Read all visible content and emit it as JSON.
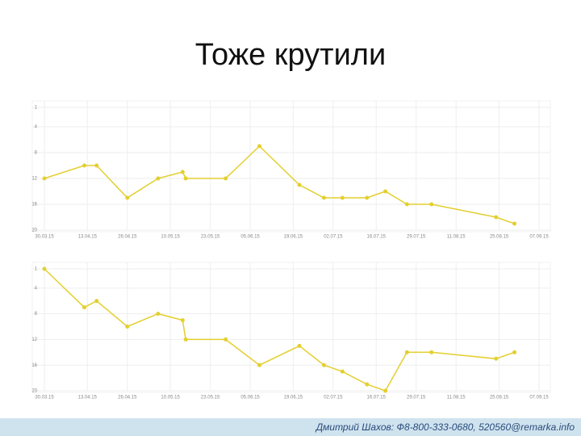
{
  "slide_title": "Тоже крутили",
  "footer": "Дмитрий Шахов: Ф8-800-333-0680, 520560@remarka.info",
  "chart_data": [
    {
      "type": "line",
      "inverted": true,
      "grid": true,
      "color": "#e3cf2f",
      "x": [
        "2015-03-30",
        "2015-04-12",
        "2015-04-16",
        "2015-04-26",
        "2015-05-06",
        "2015-05-14",
        "2015-05-15",
        "2015-05-28",
        "2015-06-08",
        "2015-06-21",
        "2015-06-29",
        "2015-07-05",
        "2015-07-13",
        "2015-07-19",
        "2015-07-26",
        "2015-08-03",
        "2015-08-24",
        "2015-08-30"
      ],
      "values": [
        12,
        10,
        10,
        15,
        12,
        11,
        12,
        12,
        7,
        13,
        15,
        15,
        15,
        14,
        16,
        16,
        18,
        19
      ],
      "xlim": [
        "2015-03-30",
        "2015-09-07"
      ],
      "xticks": [
        {
          "value": "2015-03-30",
          "label": "30.03.15"
        },
        {
          "value": "2015-04-13",
          "label": "13.04.15"
        },
        {
          "value": "2015-04-26",
          "label": "26.04.15"
        },
        {
          "value": "2015-05-10",
          "label": "10.05.15"
        },
        {
          "value": "2015-05-23",
          "label": "23.05.15"
        },
        {
          "value": "2015-06-05",
          "label": "05.06.15"
        },
        {
          "value": "2015-06-19",
          "label": "19.06.15"
        },
        {
          "value": "2015-07-02",
          "label": "02.07.15"
        },
        {
          "value": "2015-07-16",
          "label": "16.07.15"
        },
        {
          "value": "2015-07-29",
          "label": "29.07.15"
        },
        {
          "value": "2015-08-11",
          "label": "11.08.15"
        },
        {
          "value": "2015-08-25",
          "label": "25.08.15"
        },
        {
          "value": "2015-09-07",
          "label": "07.09.15"
        }
      ],
      "ylim": [
        1,
        20
      ],
      "yticks": [
        1,
        4,
        8,
        12,
        16,
        20
      ]
    },
    {
      "type": "line",
      "inverted": true,
      "grid": true,
      "color": "#e3cf2f",
      "x": [
        "2015-03-30",
        "2015-04-12",
        "2015-04-16",
        "2015-04-26",
        "2015-05-06",
        "2015-05-14",
        "2015-05-15",
        "2015-05-28",
        "2015-06-08",
        "2015-06-21",
        "2015-06-29",
        "2015-07-05",
        "2015-07-13",
        "2015-07-19",
        "2015-07-26",
        "2015-08-03",
        "2015-08-24",
        "2015-08-30"
      ],
      "values": [
        1,
        7,
        6,
        10,
        8,
        9,
        12,
        12,
        16,
        13,
        16,
        17,
        19,
        20,
        14,
        14,
        15,
        14
      ],
      "xlim": [
        "2015-03-30",
        "2015-09-07"
      ],
      "xticks": [
        {
          "value": "2015-03-30",
          "label": "30.03.15"
        },
        {
          "value": "2015-04-13",
          "label": "13.04.15"
        },
        {
          "value": "2015-04-26",
          "label": "26.04.15"
        },
        {
          "value": "2015-05-10",
          "label": "10.05.15"
        },
        {
          "value": "2015-05-23",
          "label": "23.05.15"
        },
        {
          "value": "2015-06-05",
          "label": "05.06.15"
        },
        {
          "value": "2015-06-19",
          "label": "19.06.15"
        },
        {
          "value": "2015-07-02",
          "label": "02.07.15"
        },
        {
          "value": "2015-07-16",
          "label": "16.07.15"
        },
        {
          "value": "2015-07-29",
          "label": "29.07.15"
        },
        {
          "value": "2015-08-11",
          "label": "11.08.15"
        },
        {
          "value": "2015-08-25",
          "label": "25.08.15"
        },
        {
          "value": "2015-09-07",
          "label": "07.09.15"
        }
      ],
      "ylim": [
        1,
        20
      ],
      "yticks": [
        1,
        4,
        8,
        12,
        16,
        20
      ]
    }
  ]
}
